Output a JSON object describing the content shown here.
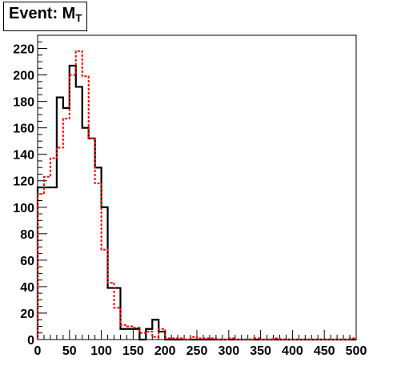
{
  "chart_data": {
    "type": "line",
    "title": "Event: M",
    "title_subscript": "T",
    "xlabel": "",
    "ylabel": "",
    "xlim": [
      0,
      500
    ],
    "ylim": [
      0,
      230
    ],
    "x_ticks": [
      0,
      50,
      100,
      150,
      200,
      250,
      300,
      350,
      400,
      450,
      500
    ],
    "y_ticks": [
      0,
      20,
      40,
      60,
      80,
      100,
      120,
      140,
      160,
      180,
      200,
      220
    ],
    "grid": false,
    "bin_width": 10,
    "bin_edges_start": 0,
    "series": [
      {
        "style": "solid",
        "color": "#000000",
        "values": [
          115,
          115,
          115,
          183,
          175,
          207,
          191,
          160,
          152,
          130,
          100,
          39,
          39,
          8,
          8,
          8,
          0,
          8,
          15,
          6,
          0,
          0,
          0,
          0,
          0,
          0,
          0,
          0,
          0,
          0,
          0,
          0,
          0,
          0,
          0,
          0,
          0,
          0,
          0,
          0,
          0,
          0,
          0,
          0,
          0,
          0,
          0,
          0,
          0,
          0
        ]
      },
      {
        "style": "dashed",
        "color": "#ff0000",
        "values": [
          110,
          123,
          137,
          145,
          167,
          200,
          218,
          199,
          152,
          118,
          68,
          43,
          24,
          11,
          10,
          9,
          5,
          6,
          2,
          8,
          1,
          1,
          1,
          0,
          2,
          1,
          1,
          1,
          0,
          0,
          1,
          0,
          0,
          0,
          1,
          0,
          0,
          1,
          0,
          0,
          0,
          0,
          0,
          0,
          0,
          0,
          0,
          0,
          0,
          1
        ]
      }
    ]
  }
}
